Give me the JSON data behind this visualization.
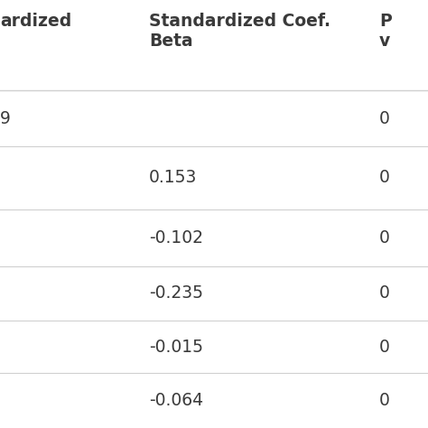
{
  "col_headers": [
    "ardized",
    "Standardized Coef.\nBeta",
    "P\nv"
  ],
  "rows": [
    [
      "9",
      "",
      "0"
    ],
    [
      "",
      "0.153",
      "0"
    ],
    [
      "",
      "-0.102",
      "0"
    ],
    [
      "",
      "-0.235",
      "0"
    ],
    [
      "",
      "-0.015",
      "0"
    ],
    [
      "",
      "-0.064",
      "0"
    ]
  ],
  "line_color": "#d0d0d0",
  "text_color": "#3a3a3a",
  "header_fontsize": 13.5,
  "cell_fontsize": 13.5,
  "bg_white": "#ffffff",
  "bg_gray": "#f2f2f2"
}
